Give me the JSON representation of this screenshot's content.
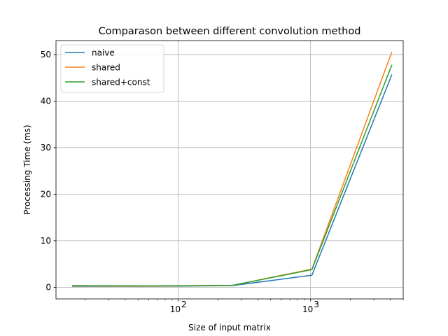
{
  "chart_data": {
    "type": "line",
    "title": "Comparason between different convolution method",
    "xlabel": "Size of input matrix",
    "ylabel": "Processing Time (ms)",
    "x_scale": "log",
    "xlim": [
      12,
      5000
    ],
    "ylim": [
      -2.5,
      53
    ],
    "x": [
      16,
      64,
      256,
      1024,
      4096
    ],
    "x_ticks": [
      {
        "value": 100,
        "base": "10",
        "exp": "2"
      },
      {
        "value": 1000,
        "base": "10",
        "exp": "3"
      }
    ],
    "y_ticks": [
      0,
      10,
      20,
      30,
      40,
      50
    ],
    "grid": true,
    "legend_position": "upper-left",
    "series": [
      {
        "name": "naive",
        "color": "#1f77b4",
        "values": [
          0.2,
          0.2,
          0.35,
          2.6,
          45.6
        ]
      },
      {
        "name": "shared",
        "color": "#ff7f0e",
        "values": [
          0.3,
          0.25,
          0.4,
          3.9,
          50.5
        ]
      },
      {
        "name": "shared+const",
        "color": "#2ca02c",
        "values": [
          0.35,
          0.3,
          0.4,
          3.8,
          47.7
        ]
      }
    ]
  }
}
